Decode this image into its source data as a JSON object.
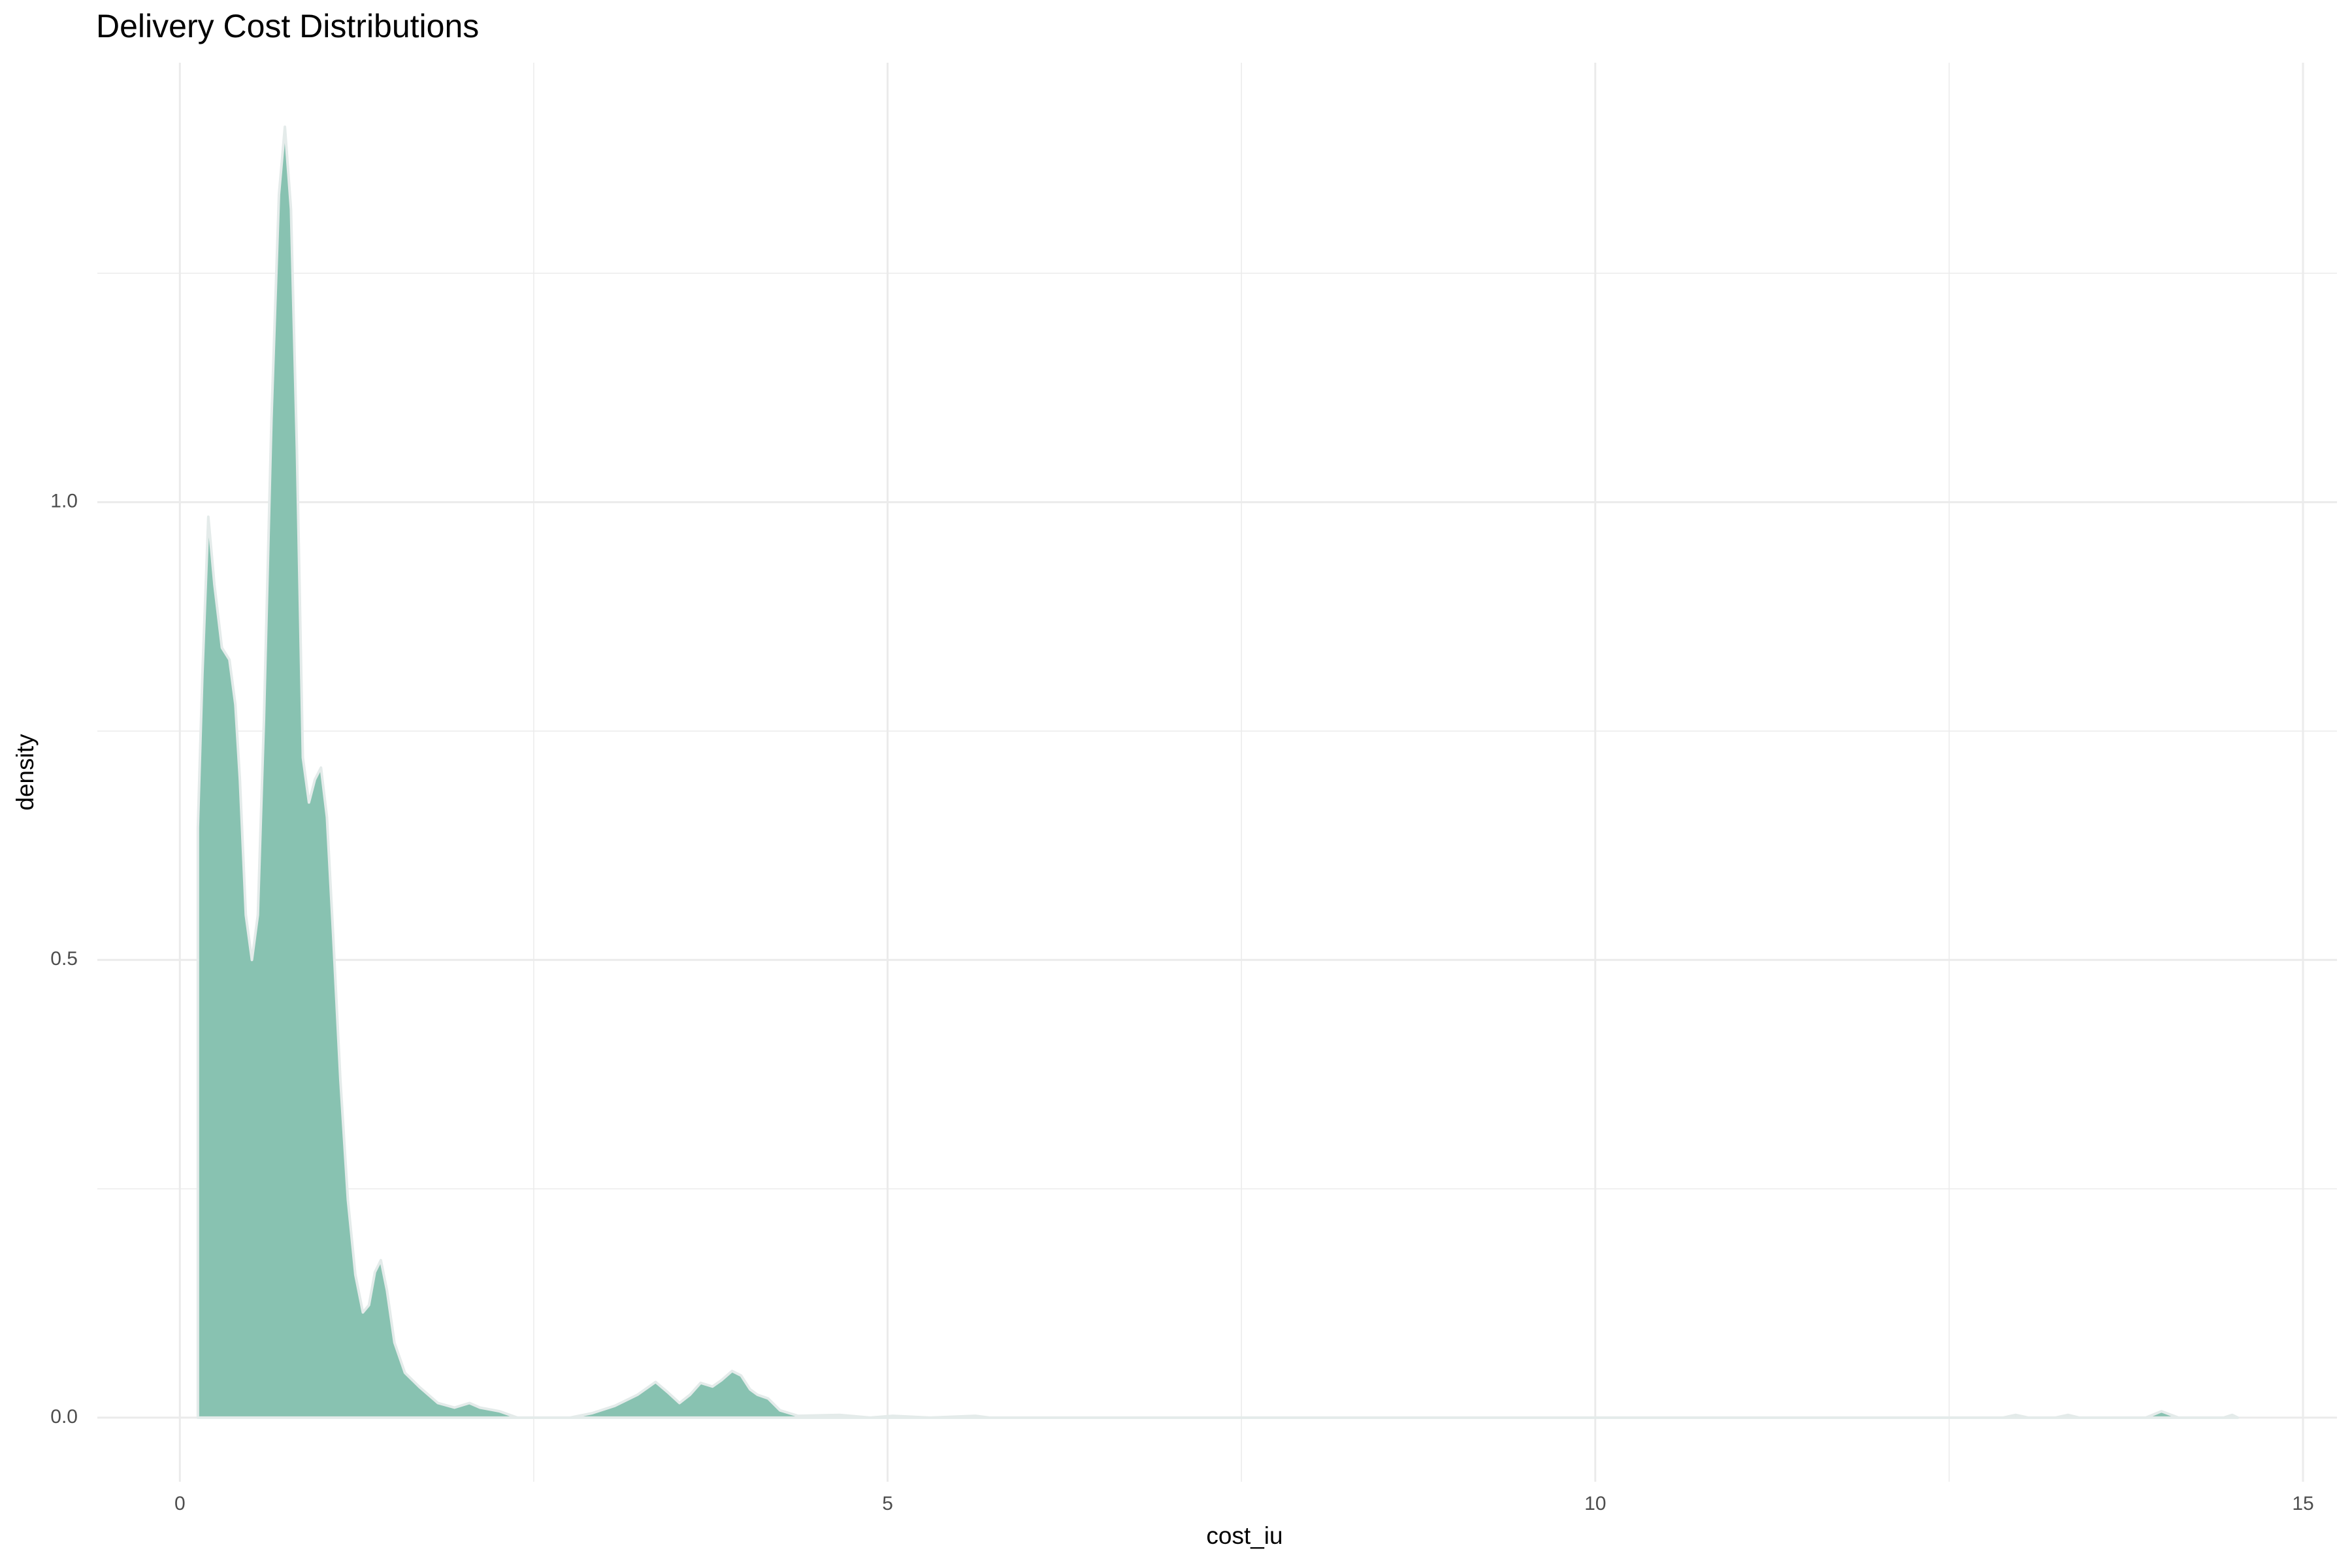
{
  "chart_data": {
    "type": "area",
    "title": "Delivery Cost Distributions",
    "x_label": "cost_iu",
    "y_label": "density",
    "color": "#88c2b1",
    "outline_color": "#e4ebea",
    "grid": true,
    "xlim": [
      -0.583,
      15.24
    ],
    "ylim": [
      -0.07,
      1.48
    ],
    "xticks": [
      0,
      5,
      10,
      15
    ],
    "yticks": [
      {
        "value": 0,
        "label": "0.0"
      },
      {
        "value": 0.5,
        "label": "0.5"
      },
      {
        "value": 1,
        "label": "1.0"
      }
    ],
    "x_minor_grid": [
      2.5,
      7.5,
      12.5
    ],
    "y_minor_grid": [
      0.25,
      0.75,
      1.25
    ],
    "x": [
      0.127,
      0.159,
      0.201,
      0.244,
      0.297,
      0.35,
      0.392,
      0.424,
      0.466,
      0.509,
      0.551,
      0.594,
      0.647,
      0.7,
      0.742,
      0.785,
      0.827,
      0.869,
      0.912,
      0.954,
      0.997,
      1.039,
      1.081,
      1.134,
      1.187,
      1.24,
      1.293,
      1.336,
      1.378,
      1.42,
      1.463,
      1.516,
      1.59,
      1.696,
      1.823,
      1.94,
      2.046,
      2.12,
      2.258,
      2.385,
      2.756,
      2.915,
      3.074,
      3.233,
      3.361,
      3.445,
      3.53,
      3.604,
      3.679,
      3.763,
      3.827,
      3.901,
      3.965,
      4.028,
      4.081,
      4.156,
      4.24,
      4.368,
      4.664,
      4.877,
      5.036,
      5.3,
      5.62,
      5.72,
      12.88,
      12.97,
      13.06,
      13.25,
      13.34,
      13.42,
      13.89,
      14.0,
      14.12,
      14.44,
      14.5,
      14.54
    ],
    "values": [
      0.644,
      0.811,
      0.984,
      0.91,
      0.841,
      0.828,
      0.779,
      0.697,
      0.549,
      0.5,
      0.549,
      0.762,
      1.09,
      1.336,
      1.41,
      1.32,
      1.057,
      0.721,
      0.672,
      0.697,
      0.71,
      0.656,
      0.533,
      0.369,
      0.238,
      0.156,
      0.115,
      0.123,
      0.159,
      0.172,
      0.139,
      0.082,
      0.049,
      0.033,
      0.016,
      0.011,
      0.016,
      0.011,
      0.007,
      0,
      0,
      0.005,
      0.013,
      0.025,
      0.039,
      0.028,
      0.016,
      0.025,
      0.038,
      0.034,
      0.041,
      0.051,
      0.046,
      0.031,
      0.025,
      0.021,
      0.008,
      0.002,
      0.003,
      0,
      0.002,
      0,
      0.002,
      0,
      0,
      0.003,
      0,
      0,
      0.003,
      0,
      0,
      0.007,
      0,
      0,
      0.003,
      0
    ]
  }
}
